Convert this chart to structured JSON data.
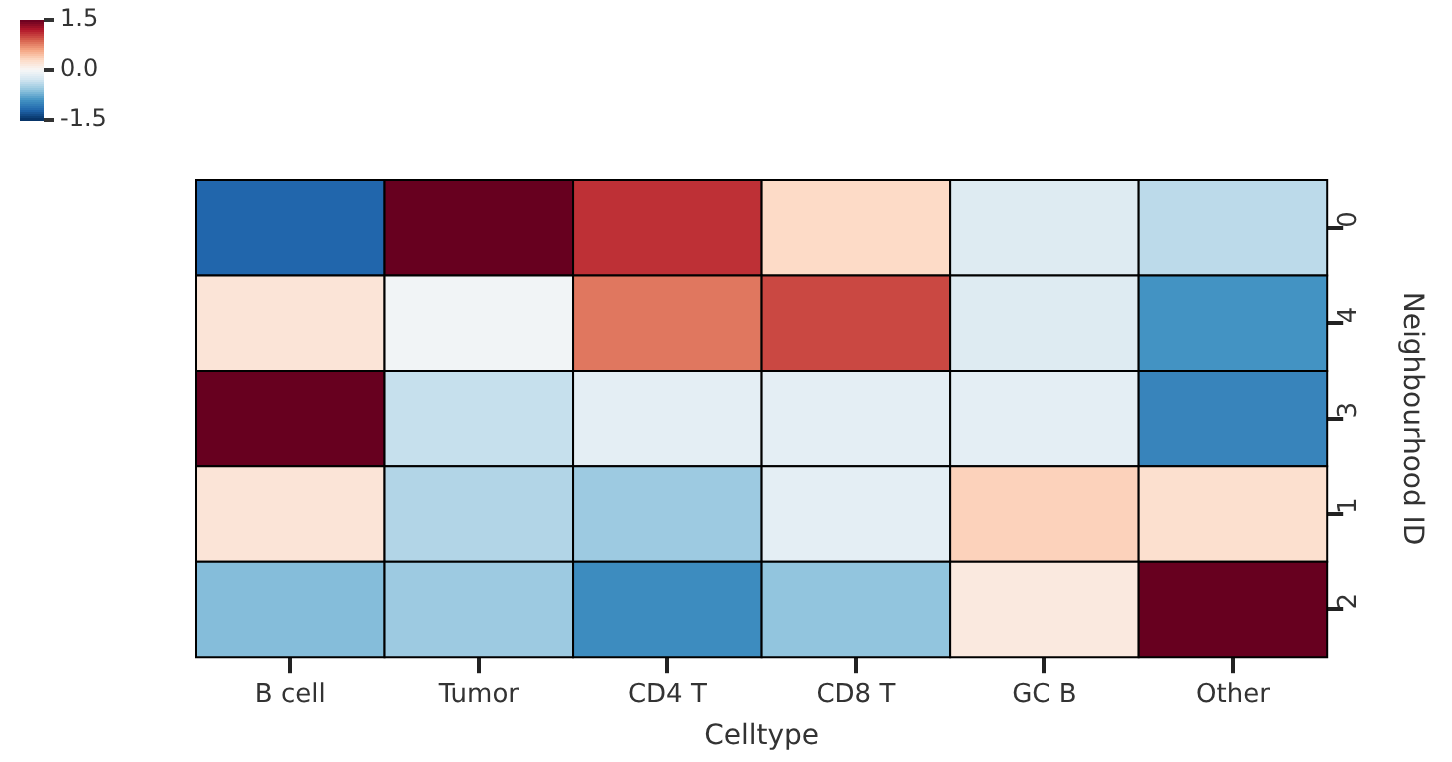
{
  "chart_data": {
    "type": "heatmap",
    "xlabel": "Celltype",
    "ylabel": "Neighbourhood ID",
    "categories": [
      "B cell",
      "Tumor",
      "CD4 T",
      "CD8 T",
      "GC B",
      "Other"
    ],
    "y_categories": [
      "0",
      "4",
      "3",
      "1",
      "2"
    ],
    "cells": [
      [
        -1.2,
        1.5,
        1.1,
        0.3,
        -0.2,
        -0.4
      ],
      [
        0.2,
        -0.05,
        0.8,
        1.0,
        -0.2,
        -0.9
      ],
      [
        1.5,
        -0.35,
        -0.15,
        -0.15,
        -0.15,
        -1.0
      ],
      [
        0.2,
        -0.45,
        -0.55,
        -0.15,
        0.35,
        0.25
      ],
      [
        -0.65,
        -0.55,
        -0.95,
        -0.6,
        0.15,
        1.5
      ]
    ],
    "clim": [
      -1.5,
      1.5
    ],
    "cticks": [
      1.5,
      {
        "value": 0,
        "label": "0.0"
      },
      -1.5
    ]
  }
}
